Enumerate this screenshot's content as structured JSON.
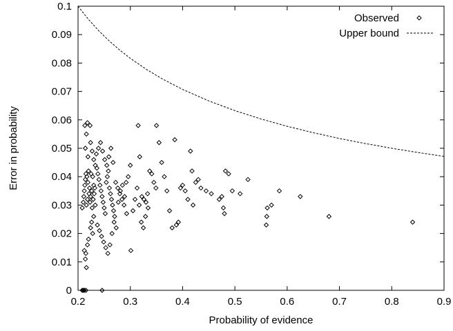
{
  "colors": {
    "background": "#ffffff",
    "axis": "#000000",
    "observed_marker": "#000000",
    "upper_bound_line": "#000000"
  },
  "chart_data": {
    "type": "scatter",
    "title": "",
    "xlabel": "Probability of evidence",
    "ylabel": "Error in probability",
    "xlim": [
      0.2,
      0.9
    ],
    "ylim": [
      0,
      0.1
    ],
    "xticks": [
      0.2,
      0.3,
      0.4,
      0.5,
      0.6,
      0.7,
      0.8,
      0.9
    ],
    "xtick_labels": [
      "0.2",
      "0.3",
      "0.4",
      "0.5",
      "0.6",
      "0.7",
      "0.8",
      "0.9"
    ],
    "yticks": [
      0,
      0.01,
      0.02,
      0.03,
      0.04,
      0.05,
      0.06,
      0.07,
      0.08,
      0.09,
      0.1
    ],
    "ytick_labels": [
      "0",
      "0.01",
      "0.02",
      "0.03",
      "0.04",
      "0.05",
      "0.06",
      "0.07",
      "0.08",
      "0.09",
      "0.1"
    ],
    "grid": false,
    "legend": {
      "placement": "top-right",
      "entries": [
        {
          "label": "Observed",
          "marker": "diamond"
        },
        {
          "label": "Upper bound",
          "style": "dashed-line"
        }
      ]
    },
    "series": [
      {
        "name": "Observed",
        "kind": "scatter",
        "marker": "diamond",
        "points": [
          [
            0.208,
            0.0
          ],
          [
            0.21,
            0.0
          ],
          [
            0.212,
            0.0
          ],
          [
            0.215,
            0.0
          ],
          [
            0.246,
            0.0
          ],
          [
            0.208,
            0.029
          ],
          [
            0.21,
            0.031
          ],
          [
            0.211,
            0.033
          ],
          [
            0.212,
            0.035
          ],
          [
            0.213,
            0.037
          ],
          [
            0.214,
            0.039
          ],
          [
            0.215,
            0.041
          ],
          [
            0.216,
            0.03
          ],
          [
            0.217,
            0.04
          ],
          [
            0.218,
            0.032
          ],
          [
            0.219,
            0.038
          ],
          [
            0.22,
            0.042
          ],
          [
            0.221,
            0.034
          ],
          [
            0.222,
            0.036
          ],
          [
            0.223,
            0.031
          ],
          [
            0.224,
            0.033
          ],
          [
            0.225,
            0.041
          ],
          [
            0.226,
            0.035
          ],
          [
            0.227,
            0.029
          ],
          [
            0.228,
            0.04
          ],
          [
            0.229,
            0.032
          ],
          [
            0.23,
            0.037
          ],
          [
            0.231,
            0.034
          ],
          [
            0.232,
            0.036
          ],
          [
            0.233,
            0.03
          ],
          [
            0.212,
            0.014
          ],
          [
            0.214,
            0.011
          ],
          [
            0.216,
            0.008
          ],
          [
            0.215,
            0.013
          ],
          [
            0.218,
            0.016
          ],
          [
            0.22,
            0.018
          ],
          [
            0.224,
            0.022
          ],
          [
            0.226,
            0.024
          ],
          [
            0.228,
            0.02
          ],
          [
            0.23,
            0.026
          ],
          [
            0.213,
            0.058
          ],
          [
            0.218,
            0.059
          ],
          [
            0.223,
            0.058
          ],
          [
            0.216,
            0.055
          ],
          [
            0.214,
            0.05
          ],
          [
            0.219,
            0.047
          ],
          [
            0.224,
            0.052
          ],
          [
            0.227,
            0.049
          ],
          [
            0.23,
            0.046
          ],
          [
            0.233,
            0.044
          ],
          [
            0.236,
            0.043
          ],
          [
            0.238,
            0.041
          ],
          [
            0.24,
            0.039
          ],
          [
            0.242,
            0.037
          ],
          [
            0.244,
            0.035
          ],
          [
            0.246,
            0.033
          ],
          [
            0.248,
            0.031
          ],
          [
            0.25,
            0.029
          ],
          [
            0.252,
            0.027
          ],
          [
            0.254,
            0.038
          ],
          [
            0.256,
            0.04
          ],
          [
            0.258,
            0.042
          ],
          [
            0.26,
            0.036
          ],
          [
            0.262,
            0.034
          ],
          [
            0.264,
            0.032
          ],
          [
            0.266,
            0.03
          ],
          [
            0.268,
            0.028
          ],
          [
            0.27,
            0.026
          ],
          [
            0.235,
            0.048
          ],
          [
            0.239,
            0.05
          ],
          [
            0.243,
            0.052
          ],
          [
            0.247,
            0.049
          ],
          [
            0.251,
            0.046
          ],
          [
            0.255,
            0.044
          ],
          [
            0.259,
            0.047
          ],
          [
            0.263,
            0.05
          ],
          [
            0.267,
            0.045
          ],
          [
            0.272,
            0.038
          ],
          [
            0.276,
            0.036
          ],
          [
            0.28,
            0.034
          ],
          [
            0.284,
            0.032
          ],
          [
            0.288,
            0.03
          ],
          [
            0.292,
            0.038
          ],
          [
            0.296,
            0.04
          ],
          [
            0.3,
            0.044
          ],
          [
            0.237,
            0.023
          ],
          [
            0.241,
            0.021
          ],
          [
            0.245,
            0.019
          ],
          [
            0.249,
            0.017
          ],
          [
            0.253,
            0.015
          ],
          [
            0.257,
            0.013
          ],
          [
            0.261,
            0.016
          ],
          [
            0.265,
            0.02
          ],
          [
            0.269,
            0.024
          ],
          [
            0.273,
            0.022
          ],
          [
            0.277,
            0.031
          ],
          [
            0.281,
            0.035
          ],
          [
            0.285,
            0.037
          ],
          [
            0.289,
            0.033
          ],
          [
            0.293,
            0.027
          ],
          [
            0.301,
            0.014
          ],
          [
            0.305,
            0.028
          ],
          [
            0.309,
            0.032
          ],
          [
            0.313,
            0.036
          ],
          [
            0.317,
            0.03
          ],
          [
            0.321,
            0.024
          ],
          [
            0.325,
            0.022
          ],
          [
            0.329,
            0.026
          ],
          [
            0.333,
            0.034
          ],
          [
            0.337,
            0.042
          ],
          [
            0.341,
            0.041
          ],
          [
            0.345,
            0.038
          ],
          [
            0.349,
            0.036
          ],
          [
            0.315,
            0.058
          ],
          [
            0.35,
            0.058
          ],
          [
            0.318,
            0.047
          ],
          [
            0.322,
            0.033
          ],
          [
            0.326,
            0.032
          ],
          [
            0.33,
            0.031
          ],
          [
            0.334,
            0.029
          ],
          [
            0.355,
            0.052
          ],
          [
            0.36,
            0.045
          ],
          [
            0.365,
            0.04
          ],
          [
            0.37,
            0.035
          ],
          [
            0.375,
            0.028
          ],
          [
            0.38,
            0.022
          ],
          [
            0.385,
            0.053
          ],
          [
            0.388,
            0.023
          ],
          [
            0.392,
            0.024
          ],
          [
            0.396,
            0.036
          ],
          [
            0.4,
            0.037
          ],
          [
            0.405,
            0.035
          ],
          [
            0.41,
            0.032
          ],
          [
            0.415,
            0.049
          ],
          [
            0.418,
            0.042
          ],
          [
            0.42,
            0.03
          ],
          [
            0.425,
            0.038
          ],
          [
            0.43,
            0.039
          ],
          [
            0.435,
            0.036
          ],
          [
            0.445,
            0.035
          ],
          [
            0.455,
            0.034
          ],
          [
            0.47,
            0.032
          ],
          [
            0.475,
            0.033
          ],
          [
            0.478,
            0.029
          ],
          [
            0.48,
            0.027
          ],
          [
            0.482,
            0.042
          ],
          [
            0.488,
            0.041
          ],
          [
            0.495,
            0.035
          ],
          [
            0.51,
            0.034
          ],
          [
            0.525,
            0.039
          ],
          [
            0.56,
            0.023
          ],
          [
            0.561,
            0.026
          ],
          [
            0.562,
            0.029
          ],
          [
            0.57,
            0.03
          ],
          [
            0.585,
            0.035
          ],
          [
            0.625,
            0.033
          ],
          [
            0.68,
            0.026
          ],
          [
            0.84,
            0.024
          ]
        ]
      },
      {
        "name": "Upper bound",
        "kind": "line",
        "style": "dashed",
        "points": [
          [
            0.2,
            0.1
          ],
          [
            0.22,
            0.09535
          ],
          [
            0.24,
            0.09129
          ],
          [
            0.26,
            0.08771
          ],
          [
            0.28,
            0.08452
          ],
          [
            0.3,
            0.08165
          ],
          [
            0.33,
            0.07785
          ],
          [
            0.36,
            0.07454
          ],
          [
            0.4,
            0.07071
          ],
          [
            0.45,
            0.06667
          ],
          [
            0.5,
            0.06325
          ],
          [
            0.55,
            0.0603
          ],
          [
            0.6,
            0.05774
          ],
          [
            0.65,
            0.05547
          ],
          [
            0.7,
            0.05345
          ],
          [
            0.75,
            0.05164
          ],
          [
            0.8,
            0.05
          ],
          [
            0.85,
            0.04851
          ],
          [
            0.9,
            0.04714
          ]
        ]
      }
    ]
  }
}
